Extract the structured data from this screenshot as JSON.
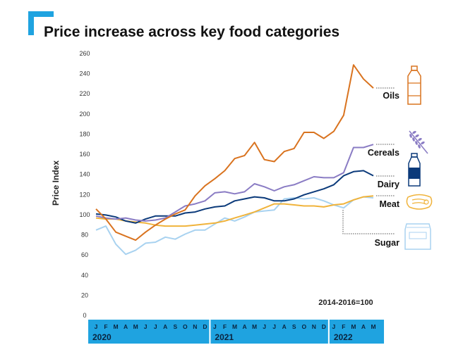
{
  "chart_data": {
    "type": "line",
    "title": "Price increase across key food categories",
    "ylabel": "Price Index",
    "xlabel": "",
    "ylim": [
      0,
      260
    ],
    "yticks": [
      0,
      20,
      40,
      60,
      80,
      100,
      120,
      140,
      160,
      180,
      200,
      220,
      240,
      260
    ],
    "grid": false,
    "annotation": "2014-2016=100",
    "x": [
      "J",
      "F",
      "M",
      "A",
      "M",
      "J",
      "J",
      "A",
      "S",
      "O",
      "N",
      "D",
      "J",
      "F",
      "M",
      "A",
      "M",
      "J",
      "J",
      "A",
      "S",
      "O",
      "N",
      "D",
      "J",
      "F",
      "M",
      "A",
      "M"
    ],
    "years": [
      {
        "label": "2020",
        "months": 12
      },
      {
        "label": "2021",
        "months": 12
      },
      {
        "label": "2022",
        "months": 5
      }
    ],
    "series": [
      {
        "name": "Oils",
        "color": "#d9731f",
        "icon": "oil-bottle-icon",
        "values": [
          105,
          95,
          82,
          78,
          74,
          82,
          89,
          95,
          100,
          104,
          118,
          128,
          135,
          143,
          155,
          158,
          171,
          154,
          152,
          162,
          165,
          181,
          181,
          175,
          182,
          198,
          248,
          234,
          225
        ]
      },
      {
        "name": "Cereals",
        "color": "#8a7cc4",
        "icon": "wheat-icon",
        "values": [
          98,
          96,
          95,
          96,
          94,
          93,
          94,
          96,
          102,
          108,
          110,
          113,
          121,
          122,
          120,
          122,
          130,
          127,
          123,
          127,
          129,
          133,
          137,
          136,
          136,
          141,
          166,
          166,
          169
        ]
      },
      {
        "name": "Dairy",
        "color": "#0b3a7a",
        "icon": "milk-bottle-icon",
        "values": [
          100,
          99,
          97,
          93,
          91,
          95,
          98,
          98,
          98,
          101,
          102,
          105,
          107,
          108,
          113,
          115,
          117,
          116,
          113,
          113,
          115,
          119,
          122,
          125,
          129,
          138,
          142,
          143,
          138
        ]
      },
      {
        "name": "Meat",
        "color": "#f0b33b",
        "icon": "meat-icon",
        "values": [
          96,
          95,
          95,
          93,
          92,
          91,
          89,
          88,
          88,
          88,
          89,
          90,
          91,
          93,
          96,
          99,
          102,
          106,
          110,
          110,
          109,
          108,
          108,
          107,
          109,
          110,
          114,
          117,
          118
        ]
      },
      {
        "name": "Sugar",
        "color": "#a8d2f0",
        "icon": "sugar-bag-icon",
        "values": [
          84,
          88,
          70,
          60,
          64,
          71,
          72,
          77,
          75,
          80,
          84,
          84,
          90,
          96,
          93,
          97,
          102,
          103,
          104,
          115,
          116,
          115,
          116,
          113,
          109,
          106,
          114,
          117,
          116
        ]
      }
    ]
  },
  "colors": {
    "accent": "#1fa3e0",
    "title": "#111111",
    "axis_text": "#333333"
  },
  "brand_icon": "blue-corner-logo-icon"
}
